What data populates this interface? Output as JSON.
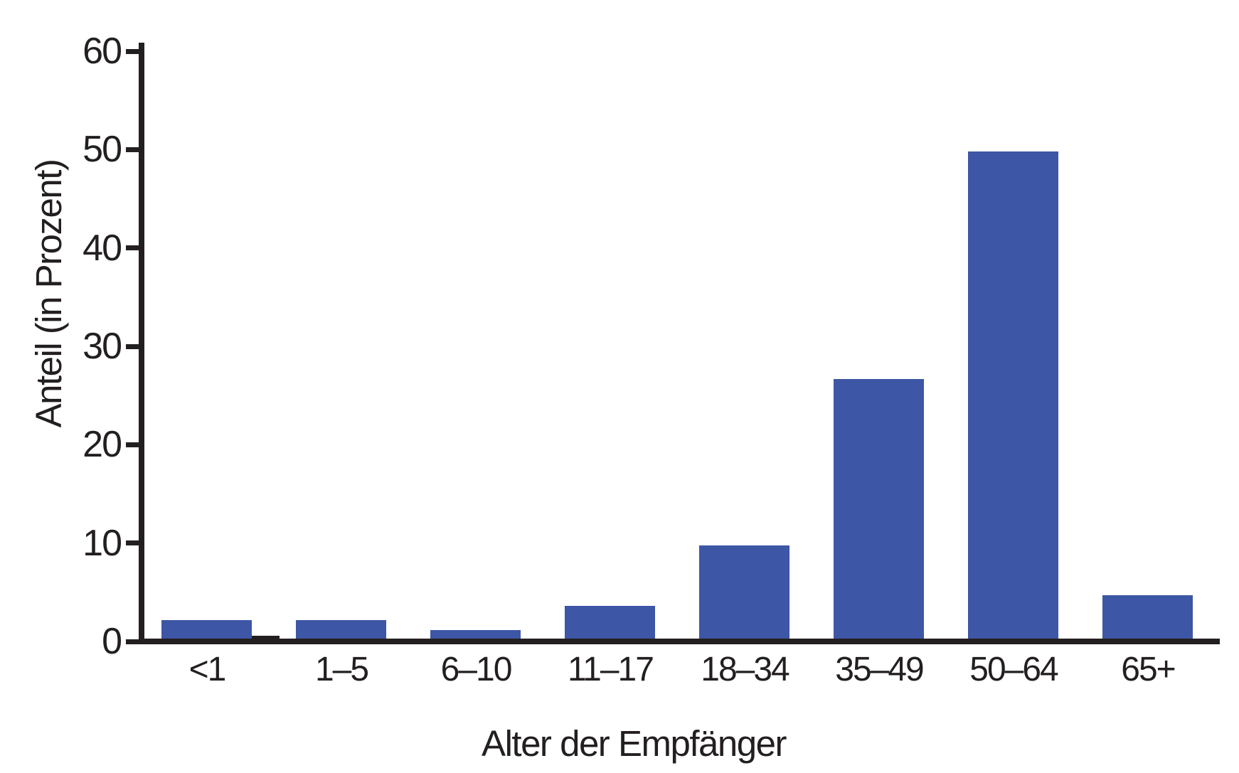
{
  "chart_data": {
    "type": "bar",
    "title": "",
    "xlabel": "Alter der Empfänger",
    "ylabel": "Anteil (in Prozent)",
    "categories": [
      "<1",
      "1–5",
      "6–10",
      "11–17",
      "18–34",
      "35–49",
      "50–64",
      "65+"
    ],
    "values": [
      1.9,
      1.9,
      0.9,
      3.3,
      9.5,
      26.4,
      49.5,
      4.4
    ],
    "series_unit": "percent",
    "ylim": [
      0,
      60
    ],
    "yticks": [
      0,
      10,
      20,
      30,
      40,
      50,
      60
    ],
    "grid": false,
    "legend": "none",
    "bar_color": "#3d56a5",
    "axis_color": "#231f20",
    "background_color": "#ffffff",
    "baseline_mark": {
      "description": "tiny dark mark on the baseline immediately right of the '<1' bar",
      "after_category": "<1",
      "approx_value_pct": 0.3
    }
  }
}
